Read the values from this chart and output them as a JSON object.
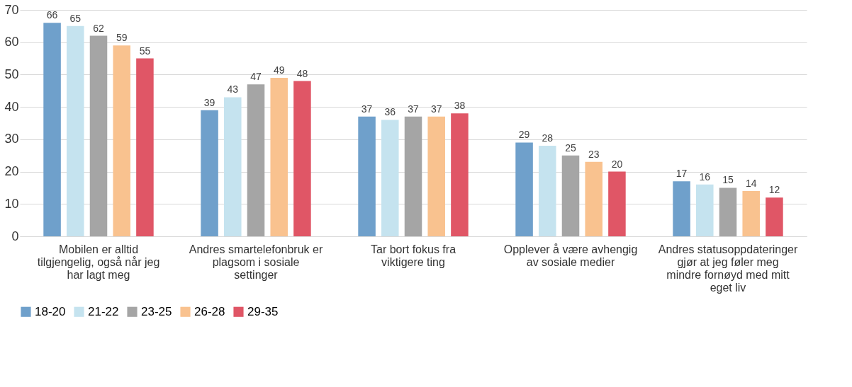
{
  "chart_data": {
    "type": "bar",
    "categories": [
      "Mobilen er alltid tilgjengelig, også når jeg har lagt meg",
      "Andres smartelefonbruk er plagsom i sosiale settinger",
      "Tar bort fokus fra viktigere ting",
      "Opplever å være avhengig av sosiale medier",
      "Andres statusoppdateringer gjør at jeg føler meg mindre fornøyd med mitt eget liv"
    ],
    "series": [
      {
        "name": "18-20",
        "color": "#6fa0cb",
        "values": [
          66,
          39,
          37,
          29,
          17
        ]
      },
      {
        "name": "21-22",
        "color": "#c5e3ef",
        "values": [
          65,
          43,
          36,
          28,
          16
        ]
      },
      {
        "name": "23-25",
        "color": "#a5a5a5",
        "values": [
          62,
          47,
          37,
          25,
          15
        ]
      },
      {
        "name": "26-28",
        "color": "#f9c28f",
        "values": [
          59,
          49,
          37,
          23,
          14
        ]
      },
      {
        "name": "29-35",
        "color": "#e05666",
        "values": [
          55,
          48,
          38,
          20,
          12
        ]
      }
    ],
    "ylim": [
      0,
      70
    ],
    "yticks": [
      0,
      10,
      20,
      30,
      40,
      50,
      60,
      70
    ],
    "grid": "y",
    "legend": "bottom",
    "data_labels": true
  }
}
